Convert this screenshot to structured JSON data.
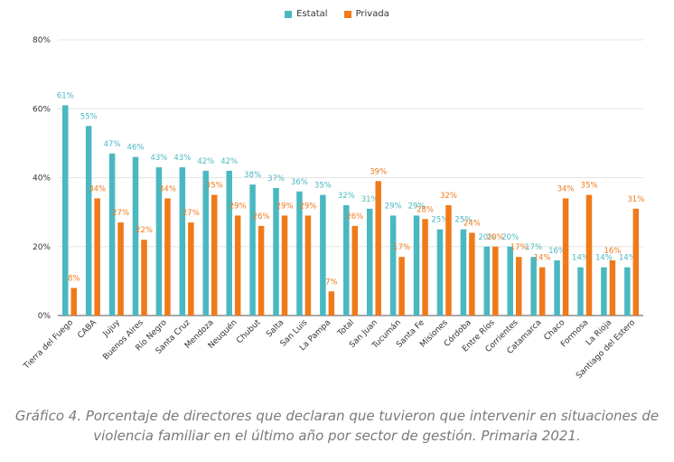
{
  "chart_data": {
    "type": "bar",
    "title": "",
    "xlabel": "",
    "ylabel": "",
    "ylim": [
      0,
      80
    ],
    "yticks": [
      "0%",
      "20%",
      "40%",
      "60%",
      "80%"
    ],
    "grid": true,
    "legend_position": "top-center",
    "categories": [
      "Tierra del Fuego",
      "CABA",
      "Jujuy",
      "Buenos Aires",
      "Río Negro",
      "Santa Cruz",
      "Mendoza",
      "Neuquén",
      "Chubut",
      "Salta",
      "San Luis",
      "La Pampa",
      "Total",
      "San Juan",
      "Tucumán",
      "Santa Fe",
      "Misiones",
      "Córdoba",
      "Entre Ríos",
      "Corrientes",
      "Catamarca",
      "Chaco",
      "Formosa",
      "La Rioja",
      "Santiago del Estero"
    ],
    "series": [
      {
        "name": "Estatal",
        "color": "#4ab8c1",
        "values": [
          61,
          55,
          47,
          46,
          43,
          43,
          42,
          42,
          38,
          37,
          36,
          35,
          32,
          31,
          29,
          29,
          25,
          25,
          20,
          20,
          17,
          16,
          14,
          14,
          14
        ],
        "labels": [
          "61%",
          "55%",
          "47%",
          "46%",
          "43%",
          "43%",
          "42%",
          "42%",
          "38%",
          "37%",
          "36%",
          "35%",
          "32%",
          "31%",
          "29%",
          "29%",
          "25%",
          "25%",
          "20%",
          "20%",
          "17%",
          "16%",
          "14%",
          "14%",
          "14%"
        ]
      },
      {
        "name": "Privada",
        "color": "#f07a1a",
        "values": [
          8,
          34,
          27,
          22,
          34,
          27,
          35,
          29,
          26,
          29,
          29,
          7,
          26,
          39,
          17,
          28,
          32,
          24,
          20,
          17,
          14,
          34,
          35,
          16,
          31
        ],
        "labels": [
          "8%",
          "34%",
          "27%",
          "22%",
          "34%",
          "27%",
          "35%",
          "29%",
          "26%",
          "29%",
          "29%",
          "7%",
          "26%",
          "39%",
          "17%",
          "28%",
          "32%",
          "24%",
          "20%",
          "17%",
          "14%",
          "34%",
          "35%",
          "16%",
          "31%"
        ]
      }
    ]
  },
  "caption": "Gráfico 4. Porcentaje de directores que declaran que tuvieron que intervenir en situaciones de violencia familiar en el último año por sector de gestión. Primaria 2021."
}
